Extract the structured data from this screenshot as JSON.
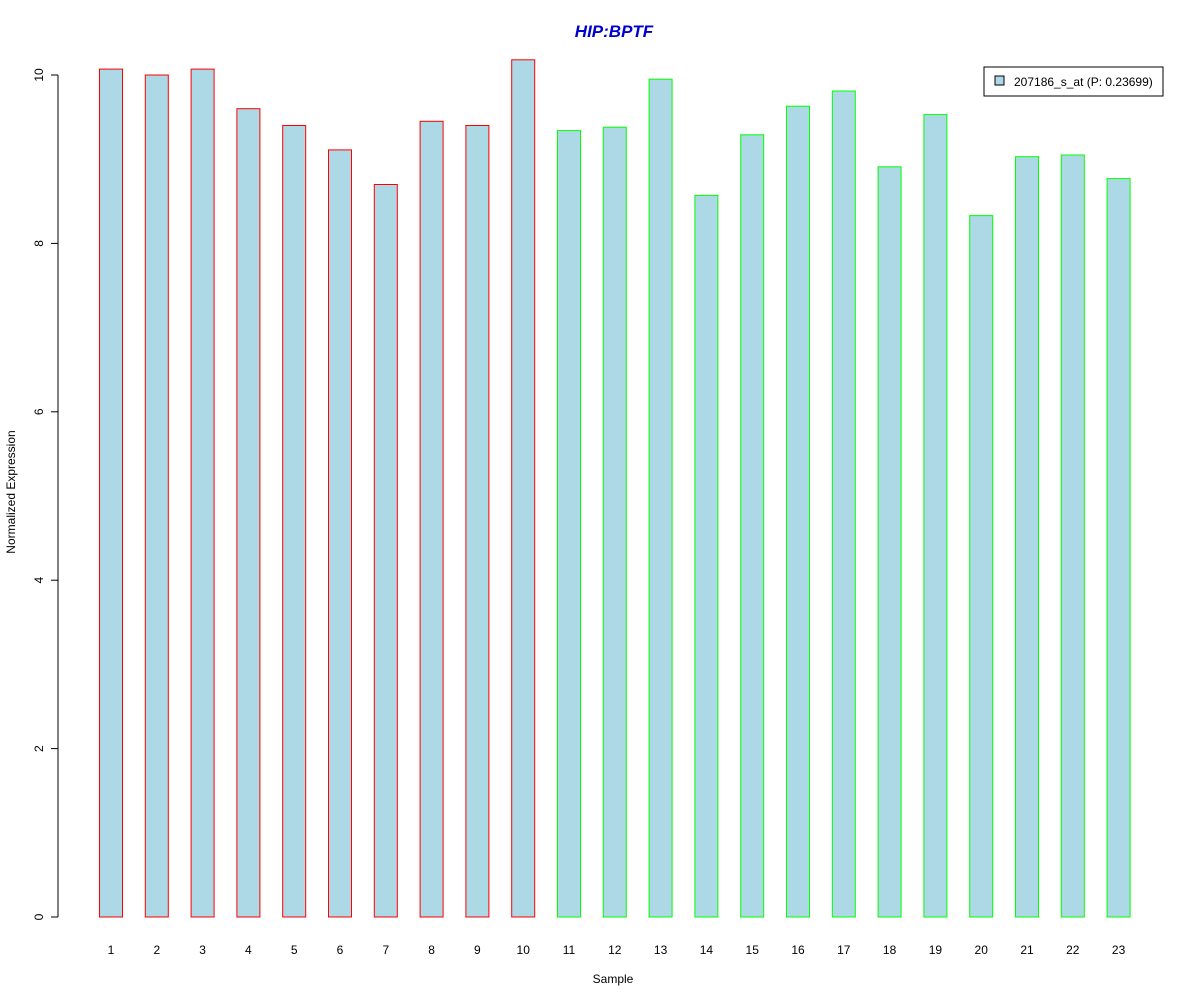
{
  "chart_data": {
    "type": "bar",
    "title": "HIP:BPTF",
    "xlabel": "Sample",
    "ylabel": "Normalized Expression",
    "categories": [
      "1",
      "2",
      "3",
      "4",
      "5",
      "6",
      "7",
      "8",
      "9",
      "10",
      "11",
      "12",
      "13",
      "14",
      "15",
      "16",
      "17",
      "18",
      "19",
      "20",
      "21",
      "22",
      "23"
    ],
    "series": [
      {
        "name": "207186_s_at (P: 0.23699)",
        "values": [
          10.07,
          10.0,
          10.07,
          9.6,
          9.4,
          9.11,
          8.7,
          9.45,
          9.4,
          10.18,
          9.34,
          9.38,
          9.95,
          8.57,
          9.29,
          9.63,
          9.81,
          8.91,
          9.53,
          8.33,
          9.03,
          9.05,
          8.77
        ]
      }
    ],
    "groups": [
      {
        "samples": [
          1,
          2,
          3,
          4,
          5,
          6,
          7,
          8,
          9,
          10
        ],
        "border_color": "#ff0000"
      },
      {
        "samples": [
          11,
          12,
          13,
          14,
          15,
          16,
          17,
          18,
          19,
          20,
          21,
          22,
          23
        ],
        "border_color": "#00ff00"
      }
    ],
    "ylim": [
      0,
      10
    ],
    "yticks": [
      0,
      2,
      4,
      6,
      8,
      10
    ],
    "legend_position": "top-right",
    "colors": {
      "bar_fill": "#add8e6",
      "title": "#0000cc",
      "axis": "#000000"
    }
  }
}
